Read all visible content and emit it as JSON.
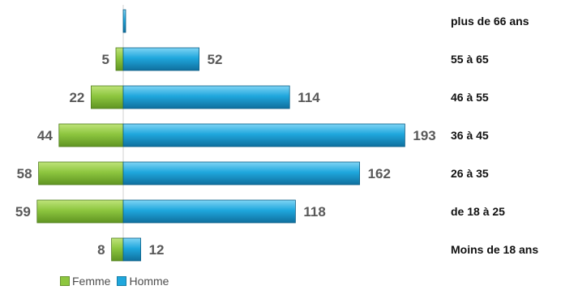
{
  "chart_data": {
    "type": "bar",
    "orientation": "horizontal",
    "layout": "population-pyramid",
    "categories": [
      "plus de 66 ans",
      "55 à 65",
      "46 à 55",
      "36 à 45",
      "26 à 35",
      "de 18 à 25",
      "Moins de 18 ans"
    ],
    "series": [
      {
        "name": "Femme",
        "values": [
          0,
          5,
          22,
          44,
          58,
          59,
          8
        ],
        "labels": [
          "",
          "5",
          "22",
          "44",
          "58",
          "59",
          "8"
        ],
        "color": "#8dc63f",
        "side": "left"
      },
      {
        "name": "Homme",
        "values": [
          1,
          52,
          114,
          193,
          162,
          118,
          12
        ],
        "labels": [
          "",
          "52",
          "114",
          "193",
          "162",
          "118",
          "12"
        ],
        "color": "#1fa7dd",
        "side": "right"
      }
    ],
    "title": "",
    "xlabel": "",
    "ylabel": "",
    "grid": false,
    "legend_position": "bottom-left"
  },
  "colors": {
    "femme": "#8dc63f",
    "homme": "#1fa7dd",
    "label_text": "#595959",
    "category_text": "#111111"
  }
}
